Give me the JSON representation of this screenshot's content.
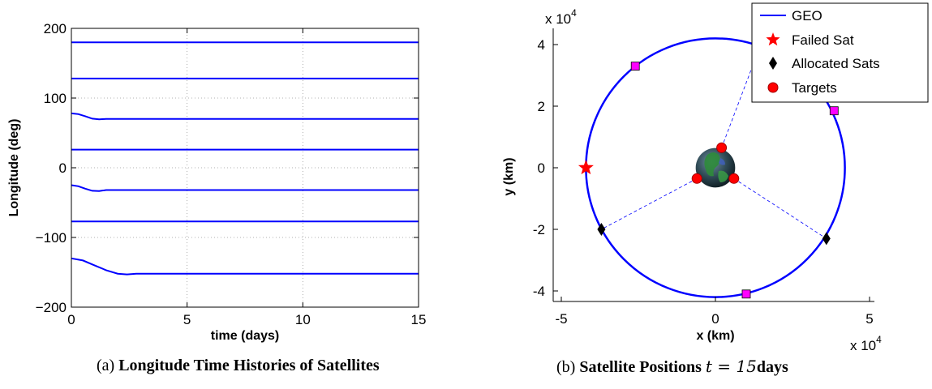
{
  "chart_data": [
    {
      "type": "line",
      "xlabel": "time (days)",
      "ylabel": "Longitude (deg)",
      "xlim": [
        0,
        15
      ],
      "ylim": [
        -200,
        200
      ],
      "xticks": [
        "0",
        "5",
        "10",
        "15"
      ],
      "yticks": [
        "−200",
        "−100",
        "0",
        "100",
        "200"
      ],
      "grid": true,
      "line_color": "#0000ff",
      "series": [
        {
          "x": [
            0,
            15
          ],
          "y": [
            180,
            180
          ]
        },
        {
          "x": [
            0,
            15
          ],
          "y": [
            128,
            128
          ]
        },
        {
          "x": [
            0,
            0.3,
            0.6,
            0.9,
            1.2,
            1.5,
            15
          ],
          "y": [
            78,
            77,
            74,
            70.5,
            69.5,
            70,
            70
          ]
        },
        {
          "x": [
            0,
            15
          ],
          "y": [
            26,
            26
          ]
        },
        {
          "x": [
            0,
            0.3,
            0.6,
            0.9,
            1.2,
            1.5,
            15
          ],
          "y": [
            -25,
            -26.5,
            -30,
            -33,
            -33.5,
            -32,
            -32
          ]
        },
        {
          "x": [
            0,
            15
          ],
          "y": [
            -77,
            -77
          ]
        },
        {
          "x": [
            0,
            0.5,
            1.0,
            1.5,
            2.0,
            2.4,
            2.8,
            15
          ],
          "y": [
            -130,
            -133,
            -140,
            -147,
            -152,
            -153,
            -152,
            -152
          ]
        }
      ],
      "caption_label": "(a)",
      "caption_title": "Longitude Time Histories of Satellites"
    },
    {
      "type": "scatter",
      "xlabel": "x (km)",
      "ylabel": "y (km)",
      "xlim": [
        -5.5,
        5.5
      ],
      "ylim": [
        -4.3,
        4.3
      ],
      "xticks": [
        "-5",
        "0",
        "5"
      ],
      "yticks": [
        "-4",
        "-2",
        "0",
        "2",
        "4"
      ],
      "x_exponent_base": "x 10",
      "x_exponent": "4",
      "y_exponent_base": "x 10",
      "y_exponent": "4",
      "grid": false,
      "legend_position": "top-right",
      "legend": [
        {
          "label": "GEO",
          "marker": "line",
          "color": "#0000ff"
        },
        {
          "label": "Failed Sat",
          "marker": "star",
          "color": "#ff0000"
        },
        {
          "label": "Allocated Sats",
          "marker": "diamond",
          "color": "#000000"
        },
        {
          "label": "Targets",
          "marker": "circle",
          "color": "#ff0000"
        }
      ],
      "geo_radius": 4.2,
      "failed_sat": {
        "x": -4.2,
        "y": 0.0
      },
      "allocated_sats": [
        {
          "x": 1.45,
          "y": 3.95
        },
        {
          "x": -3.7,
          "y": -2.0
        },
        {
          "x": 3.6,
          "y": -2.3
        }
      ],
      "targets": [
        {
          "x": 0.2,
          "y": 0.65
        },
        {
          "x": -0.6,
          "y": -0.35
        },
        {
          "x": 0.6,
          "y": -0.35
        }
      ],
      "other_sats": [
        {
          "x": -2.6,
          "y": 3.3
        },
        {
          "x": 3.85,
          "y": 1.85
        },
        {
          "x": 1.0,
          "y": -4.1
        }
      ],
      "other_sat_color": "#ff00ff",
      "earth_radius": 0.64,
      "caption_label": "(b)",
      "caption_title": "Satellite Positions",
      "caption_math": "t = 15",
      "caption_unit": "days"
    }
  ]
}
